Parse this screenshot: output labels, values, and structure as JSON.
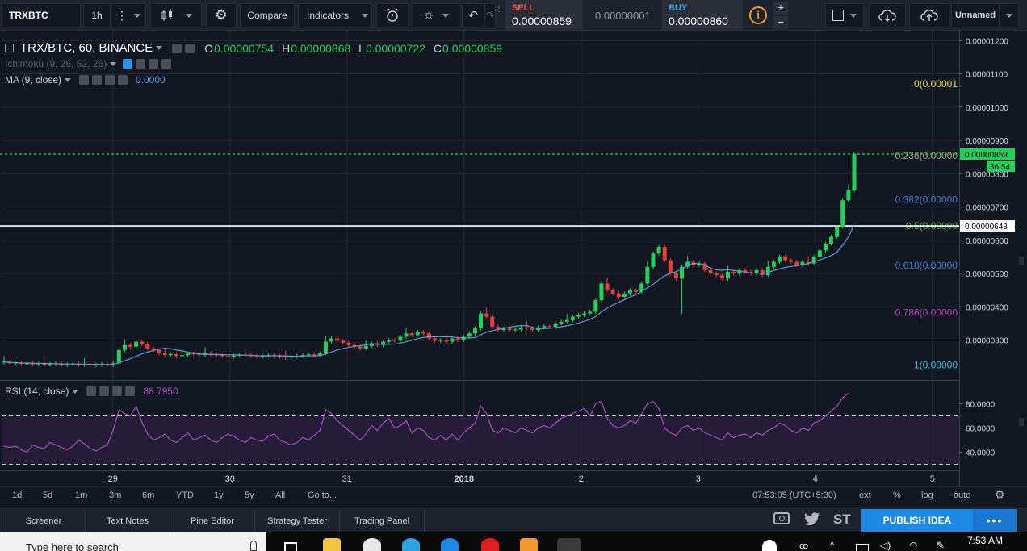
{
  "toolbar": {
    "symbol": "TRXBTC",
    "interval": "1h",
    "compare_label": "Compare",
    "indicators_label": "Indicators",
    "sell_label": "SELL",
    "sell_price": "0.00000859",
    "spread": "0.00000001",
    "buy_label": "BUY",
    "buy_price": "0.00000860",
    "layout_name": "Unnamed"
  },
  "legend": {
    "title": "TRX/BTC, 60, BINANCE",
    "o_label": "O",
    "o_value": "0.00000754",
    "h_label": "H",
    "h_value": "0.00000868",
    "l_label": "L",
    "l_value": "0.00000722",
    "c_label": "C",
    "c_value": "0.00000859",
    "ichimoku": "Ichimoku (9, 26, 52, 26)",
    "ma": "MA (9, close)",
    "ma_value": "0.0000",
    "rsi": "RSI (14, close)",
    "rsi_value": "88.7950"
  },
  "fib_levels": [
    {
      "ratio": 0,
      "text": "0(0.00001",
      "color": "#e0e03a",
      "price": 1.07e-05
    },
    {
      "ratio": 0.236,
      "text": "0.236(0.00000",
      "color": "#a5a57a",
      "price": 8.54e-06
    },
    {
      "ratio": 0.382,
      "text": "0.382(0.00000",
      "color": "#3f7fd6",
      "price": 7.22e-06
    },
    {
      "ratio": 0.5,
      "text": "0.5(0.00000",
      "color": "#4caf50",
      "price": 6.43e-06
    },
    {
      "ratio": 0.618,
      "text": "0.618(0.00000",
      "color": "#3f7fd6",
      "price": 5.24e-06
    },
    {
      "ratio": 0.786,
      "text": "0.786(0.00000",
      "color": "#ab47bc",
      "price": 3.83e-06
    },
    {
      "ratio": 1,
      "text": "1(0.00000",
      "color": "#26c6da",
      "price": 2.25e-06
    }
  ],
  "chart_data": {
    "type": "candlestick",
    "price_axis": {
      "ticks": [
        "0.00001200",
        "0.00001100",
        "0.00001000",
        "0.00000900",
        "0.00000800",
        "0.00000700",
        "0.00000600",
        "0.00000500",
        "0.00000400",
        "0.00000300"
      ],
      "tick_values": [
        12,
        11,
        10,
        9,
        8,
        7,
        6,
        5,
        4,
        3
      ],
      "range": [
        1.8,
        12.3
      ],
      "unit_scale": "1e-6"
    },
    "last_price_label": "0.00000859",
    "countdown_label": "36:54",
    "hline_label": "0.00000643",
    "hline_value": 6.43,
    "last_value": 8.59,
    "time_axis": [
      "29",
      "30",
      "31",
      "2018",
      "2",
      "3",
      "4",
      "5"
    ],
    "time_axis_day_index": [
      1,
      2,
      3,
      4,
      5,
      6,
      7,
      8
    ],
    "closes": [
      2.35,
      2.3,
      2.32,
      2.28,
      2.3,
      2.27,
      2.29,
      2.26,
      2.28,
      2.3,
      2.25,
      2.27,
      2.29,
      2.26,
      2.28,
      2.24,
      2.26,
      2.28,
      2.25,
      2.3,
      2.7,
      2.85,
      2.8,
      2.95,
      2.88,
      2.75,
      2.7,
      2.6,
      2.55,
      2.58,
      2.52,
      2.55,
      2.6,
      2.58,
      2.55,
      2.6,
      2.57,
      2.55,
      2.52,
      2.5,
      2.53,
      2.56,
      2.54,
      2.52,
      2.5,
      2.53,
      2.55,
      2.52,
      2.5,
      2.48,
      2.5,
      2.53,
      2.55,
      2.57,
      2.55,
      2.6,
      2.95,
      3.05,
      2.98,
      2.92,
      2.85,
      2.8,
      2.75,
      2.82,
      2.9,
      2.85,
      2.95,
      3.0,
      2.98,
      3.1,
      3.2,
      3.15,
      3.25,
      3.2,
      3.05,
      2.98,
      3.0,
      2.95,
      3.05,
      3.0,
      3.1,
      3.2,
      3.35,
      3.8,
      3.7,
      3.4,
      3.3,
      3.35,
      3.3,
      3.32,
      3.38,
      3.35,
      3.3,
      3.38,
      3.42,
      3.4,
      3.5,
      3.55,
      3.6,
      3.7,
      3.75,
      3.8,
      3.85,
      4.2,
      4.7,
      4.5,
      4.4,
      4.3,
      4.4,
      4.5,
      4.45,
      4.7,
      5.2,
      5.6,
      5.8,
      5.4,
      5.0,
      4.85,
      5.2,
      5.35,
      5.25,
      5.3,
      5.1,
      5.0,
      4.95,
      4.85,
      5.05,
      5.0,
      5.1,
      5.05,
      5.0,
      5.1,
      4.95,
      5.2,
      5.35,
      5.5,
      5.4,
      5.35,
      5.25,
      5.35,
      5.3,
      5.5,
      5.7,
      5.9,
      6.1,
      6.4,
      7.2,
      7.5,
      8.59
    ],
    "ma_line": "MA (9, close)",
    "rsi_axis": {
      "ticks": [
        "80.0000",
        "60.0000",
        "40.0000"
      ],
      "tick_values": [
        80,
        60,
        40
      ],
      "range": [
        25,
        95
      ],
      "bands": [
        70,
        30
      ]
    },
    "rsi_values": [
      45,
      44,
      45,
      42,
      40,
      46,
      44,
      43,
      48,
      46,
      44,
      42,
      45,
      50,
      47,
      43,
      41,
      44,
      46,
      58,
      75,
      72,
      70,
      78,
      65,
      55,
      50,
      52,
      55,
      50,
      48,
      52,
      56,
      50,
      52,
      54,
      50,
      48,
      52,
      55,
      53,
      50,
      48,
      52,
      50,
      49,
      53,
      55,
      50,
      48,
      46,
      48,
      52,
      50,
      54,
      58,
      75,
      72,
      66,
      62,
      58,
      54,
      50,
      55,
      62,
      58,
      64,
      68,
      60,
      62,
      66,
      56,
      60,
      58,
      52,
      50,
      54,
      50,
      55,
      50,
      56,
      60,
      64,
      78,
      72,
      58,
      56,
      60,
      58,
      56,
      60,
      58,
      56,
      60,
      62,
      60,
      64,
      68,
      70,
      72,
      74,
      76,
      70,
      80,
      82,
      68,
      62,
      60,
      62,
      66,
      64,
      72,
      80,
      82,
      76,
      60,
      56,
      54,
      60,
      62,
      58,
      60,
      56,
      54,
      52,
      50,
      56,
      52,
      54,
      55,
      52,
      56,
      54,
      58,
      60,
      64,
      62,
      58,
      56,
      60,
      58,
      64,
      66,
      70,
      74,
      78,
      85,
      88.795
    ]
  },
  "timeframes": {
    "items": [
      "1d",
      "5d",
      "1m",
      "3m",
      "6m",
      "YTD",
      "1y",
      "5y",
      "All",
      "Go to..."
    ],
    "clock": "07:53:05 (UTC+5:30)",
    "ext": "ext",
    "pct": "%",
    "log": "log",
    "auto": "auto"
  },
  "tabs": {
    "items": [
      "Screener",
      "Text Notes",
      "Pine Editor",
      "Strategy Tester",
      "Trading Panel"
    ],
    "st": "ST",
    "publish": "PUBLISH IDEA",
    "more": "•••"
  },
  "taskbar": {
    "search_placeholder": "Type here to search",
    "time": "7:53 AM"
  },
  "colors": {
    "up": "#22d15a",
    "down": "#ef3b3b",
    "ma": "#5b9bd5",
    "rsi": "#a64fc0",
    "last_price_line": "#22d15a",
    "hline": "#ffffff"
  }
}
